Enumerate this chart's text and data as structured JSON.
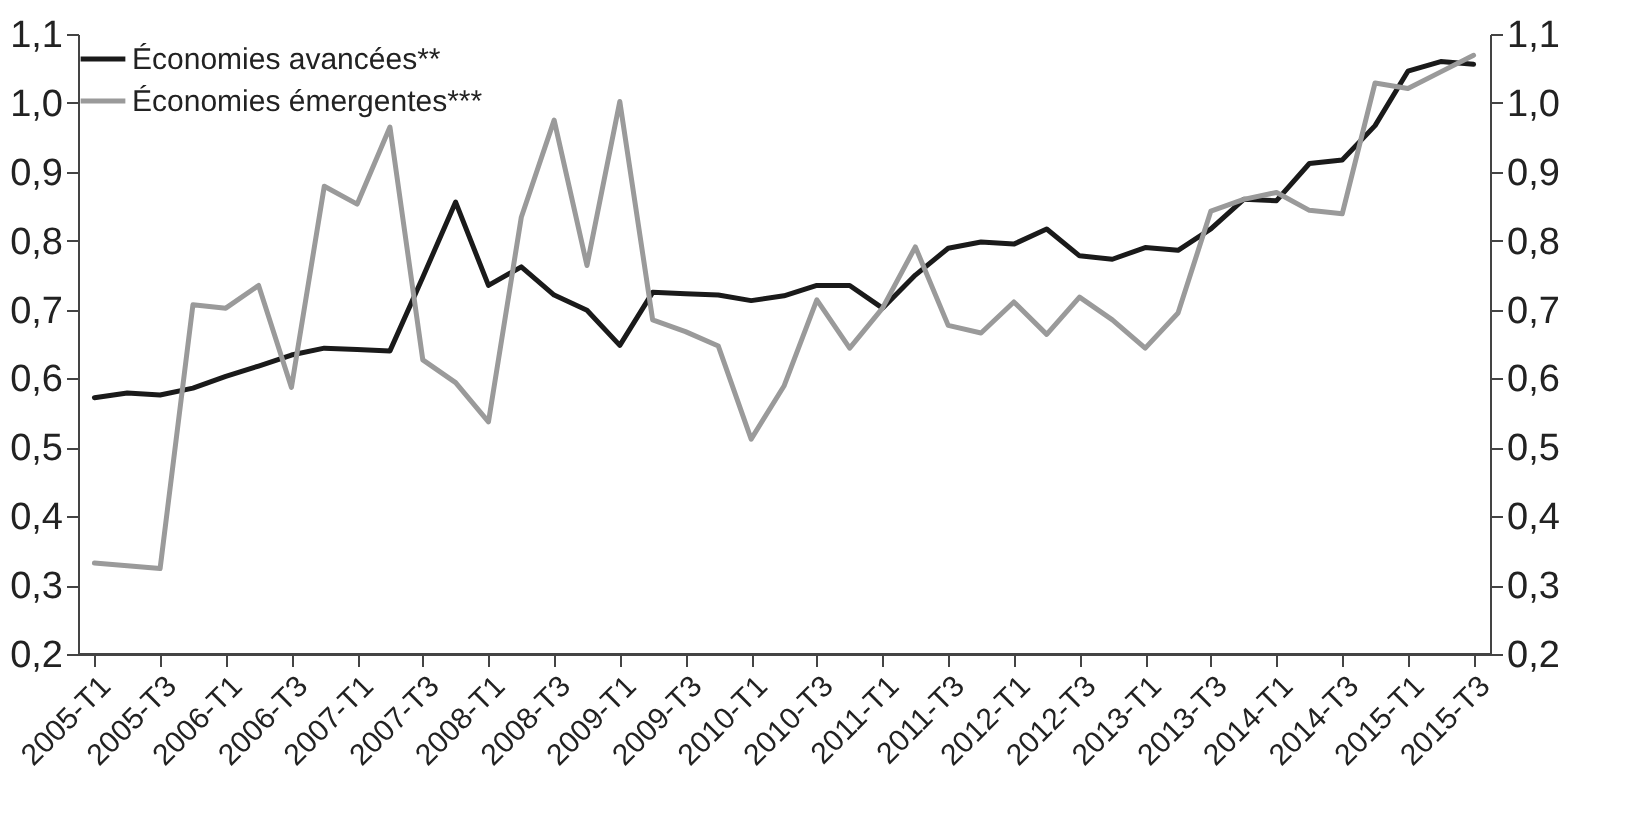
{
  "chart_data": {
    "type": "line",
    "categories": [
      "2005-T1",
      null,
      "2005-T3",
      null,
      "2006-T1",
      null,
      "2006-T3",
      null,
      "2007-T1",
      null,
      "2007-T3",
      null,
      "2008-T1",
      null,
      "2008-T3",
      null,
      "2009-T1",
      null,
      "2009-T3",
      null,
      "2010-T1",
      null,
      "2010-T3",
      null,
      "2011-T1",
      null,
      "2011-T3",
      null,
      "2012-T1",
      null,
      "2012-T3",
      null,
      "2013-T1",
      null,
      "2013-T3",
      null,
      "2014-T1",
      null,
      "2014-T3",
      null,
      "2015-T1",
      null,
      "2015-T3"
    ],
    "series": [
      {
        "name": "Économies avancées**",
        "color": "#1a1a1a",
        "values": [
          0.572,
          0.579,
          0.576,
          0.586,
          0.603,
          0.618,
          0.634,
          0.644,
          0.642,
          0.64,
          0.747,
          0.856,
          0.735,
          0.762,
          0.721,
          0.699,
          0.648,
          0.725,
          0.723,
          0.721,
          0.713,
          0.72,
          0.735,
          0.735,
          0.702,
          0.75,
          0.789,
          0.798,
          0.795,
          0.817,
          0.778,
          0.773,
          0.79,
          0.786,
          0.817,
          0.86,
          0.858,
          0.912,
          0.917,
          0.967,
          1.046,
          1.06,
          1.056
        ]
      },
      {
        "name": "Économies émergentes***",
        "color": "#9a9a9a",
        "values": [
          0.332,
          0.328,
          0.324,
          0.707,
          0.702,
          0.735,
          0.587,
          0.879,
          0.853,
          0.965,
          0.627,
          0.594,
          0.537,
          0.834,
          0.975,
          0.764,
          1.002,
          0.685,
          0.668,
          0.647,
          0.512,
          0.589,
          0.714,
          0.644,
          0.702,
          0.791,
          0.677,
          0.666,
          0.711,
          0.664,
          0.718,
          0.685,
          0.644,
          0.695,
          0.843,
          0.86,
          0.87,
          0.844,
          0.839,
          1.029,
          1.021,
          1.045,
          1.069
        ]
      }
    ],
    "ylim": [
      0.2,
      1.1
    ],
    "yticks": [
      {
        "value": 0.2,
        "label": "0,2"
      },
      {
        "value": 0.3,
        "label": "0,3"
      },
      {
        "value": 0.4,
        "label": "0,4"
      },
      {
        "value": 0.5,
        "label": "0,5"
      },
      {
        "value": 0.6,
        "label": "0,6"
      },
      {
        "value": 0.7,
        "label": "0,7"
      },
      {
        "value": 0.8,
        "label": "0,8"
      },
      {
        "value": 0.9,
        "label": "0,9"
      },
      {
        "value": 1.0,
        "label": "1,0"
      },
      {
        "value": 1.1,
        "label": "1,1"
      }
    ],
    "y2lim": [
      0.2,
      1.1
    ],
    "y2ticks": [
      {
        "value": 0.2,
        "label": "0,2"
      },
      {
        "value": 0.3,
        "label": "0,3"
      },
      {
        "value": 0.4,
        "label": "0,4"
      },
      {
        "value": 0.5,
        "label": "0,5"
      },
      {
        "value": 0.6,
        "label": "0,6"
      },
      {
        "value": 0.7,
        "label": "0,7"
      },
      {
        "value": 0.8,
        "label": "0,8"
      },
      {
        "value": 0.9,
        "label": "0,9"
      },
      {
        "value": 1.0,
        "label": "1,0"
      },
      {
        "value": 1.1,
        "label": "1,1"
      }
    ],
    "grid": false,
    "legend": "top left",
    "marker": "none",
    "line_style": "solid"
  }
}
